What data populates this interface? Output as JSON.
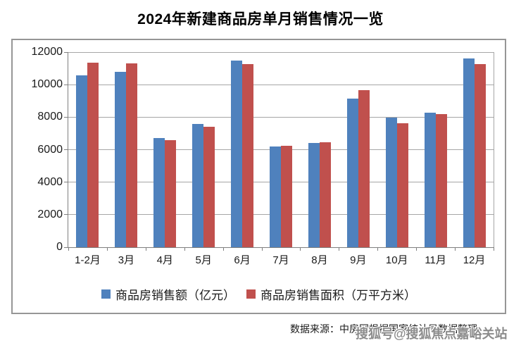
{
  "title": "2024年新建商品房单月销售情况一览",
  "source_note": "数据来源：中房网根据国家统计局数据整理",
  "watermark": "搜狐号@搜狐焦点嘉峪关站",
  "colors": {
    "series_blue": "#4F81BD",
    "series_red": "#C0504D",
    "gridline": "#A6A6A6",
    "axis": "#7F7F7F",
    "chart_border": "#969696",
    "watermark_gray": "#8C8C8C"
  },
  "chart_data": {
    "type": "bar",
    "title": "2024年新建商品房单月销售情况一览",
    "categories": [
      "1-2月",
      "3月",
      "4月",
      "5月",
      "6月",
      "7月",
      "8月",
      "9月",
      "10月",
      "11月",
      "12月"
    ],
    "series": [
      {
        "name": "商品房销售额（亿元）",
        "color": "#4F81BD",
        "values": [
          10566,
          10789,
          6712,
          7598,
          11468,
          6197,
          6393,
          9157,
          7975,
          8270,
          11625
        ]
      },
      {
        "name": "商品房销售面积（万平方米）",
        "color": "#C0504D",
        "values": [
          11369,
          11299,
          6584,
          7390,
          11274,
          6233,
          6453,
          9682,
          7646,
          8188,
          11267
        ]
      }
    ],
    "xlabel": "",
    "ylabel": "",
    "ylim": [
      0,
      12000
    ],
    "ytick_step": 2000,
    "yticks": [
      0,
      2000,
      4000,
      6000,
      8000,
      10000,
      12000
    ],
    "grid": true,
    "legend_position": "bottom"
  }
}
